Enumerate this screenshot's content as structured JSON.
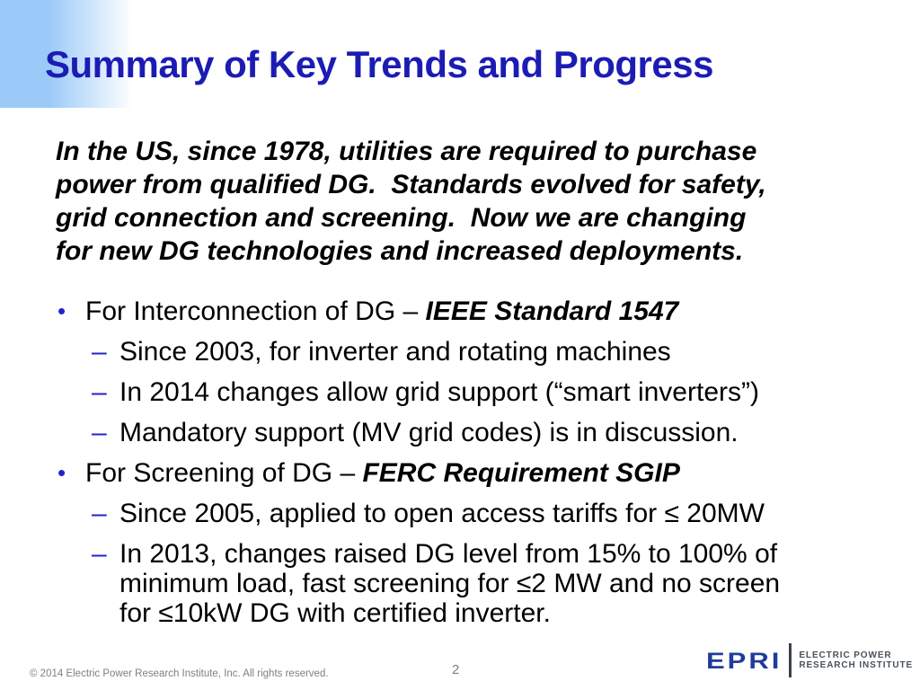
{
  "slide": {
    "title": "Summary of Key Trends and Progress"
  },
  "intro": {
    "lines": [
      "In the US, since 1978, utilities are required to purchase",
      "power from qualified DG.  Standards evolved for safety,",
      "grid connection and screening.  Now we are changing",
      "for new DG technologies and increased deployments."
    ]
  },
  "markers": {
    "bullet": "•",
    "dash": "–"
  },
  "bullets": {
    "b1": {
      "prefix": "For Interconnection of DG – ",
      "emphasis": "IEEE Standard 1547"
    },
    "b1_sub1": "Since 2003, for inverter and rotating machines",
    "b1_sub2": "In 2014 changes allow grid support (“smart inverters”)",
    "b1_sub3": "Mandatory support (MV grid codes) is in discussion.",
    "b2": {
      "prefix": "For Screening of DG – ",
      "emphasis": "FERC Requirement SGIP"
    },
    "b2_sub1": "Since 2005, applied to open access tariffs for ≤ 20MW",
    "b2_sub2_lines": [
      "In 2013, changes raised DG level from 15% to 100% of",
      "minimum load, fast screening for ≤2 MW and no screen",
      "for ≤10kW DG with certified inverter."
    ]
  },
  "footer": {
    "copyright": "© 2014 Electric Power Research Institute, Inc. All rights reserved.",
    "page_number": "2",
    "logo": {
      "wordmark": "EPRI",
      "tagline_line1": "ELECTRIC POWER",
      "tagline_line2": "RESEARCH INSTITUTE"
    }
  },
  "colors": {
    "title_blue": "#1c1cb4",
    "bullet_blue": "#2323cc",
    "band_blue": "#9ccaf8",
    "logo_blue": "#1e3d99",
    "logo_gray": "#4a525a",
    "footer_gray": "#7f7f7f",
    "text_black": "#000000"
  }
}
